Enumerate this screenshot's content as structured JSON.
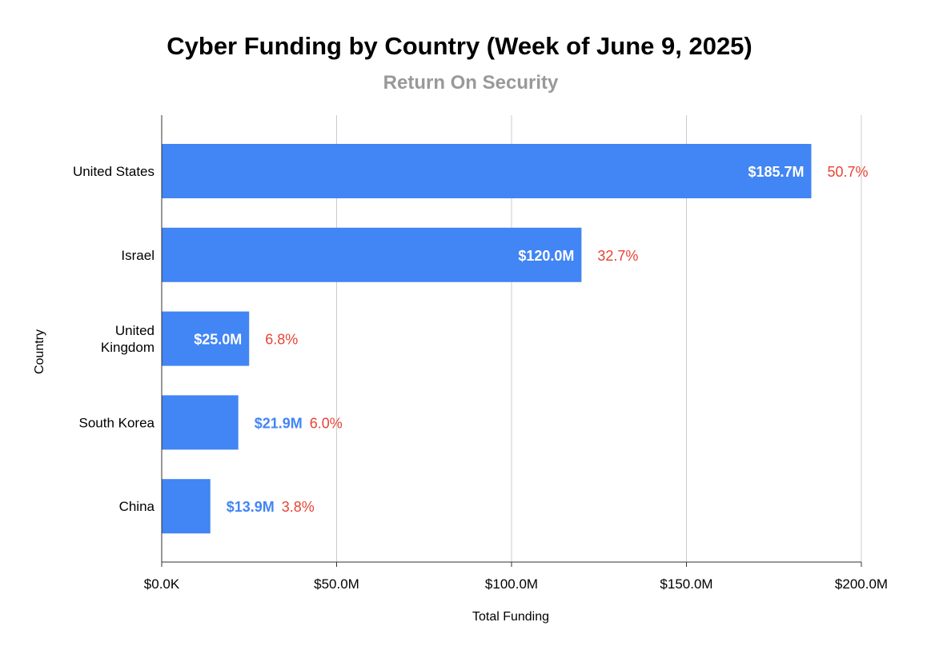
{
  "chart_data": {
    "type": "bar",
    "orientation": "horizontal",
    "title": "Cyber Funding by Country (Week of June 9, 2025)",
    "subtitle": "Return On Security",
    "xlabel": "Total Funding",
    "ylabel": "Country",
    "xlim": [
      0,
      200
    ],
    "x_unit": "millions USD",
    "x_ticks": [
      0,
      50,
      100,
      150,
      200
    ],
    "x_tick_labels": [
      "$0.0K",
      "$50.0M",
      "$100.0M",
      "$150.0M",
      "$200.0M"
    ],
    "grid": "vertical",
    "categories": [
      [
        "United States"
      ],
      [
        "Israel"
      ],
      [
        "United",
        "Kingdom"
      ],
      [
        "South Korea"
      ],
      [
        "China"
      ]
    ],
    "values": [
      185.7,
      120.0,
      25.0,
      21.9,
      13.9
    ],
    "value_labels": [
      "$185.7M",
      "$120.0M",
      "$25.0M",
      "$21.9M",
      "$13.9M"
    ],
    "share_labels": [
      "50.7%",
      "32.7%",
      "6.8%",
      "6.0%",
      "3.8%"
    ],
    "colors": {
      "bar": "#4285f4",
      "value_label_inside": "#ffffff",
      "value_label_outside": "#4285f4",
      "share_label": "#e84335",
      "gridline": "#cccccc",
      "axis": "#333333"
    }
  }
}
